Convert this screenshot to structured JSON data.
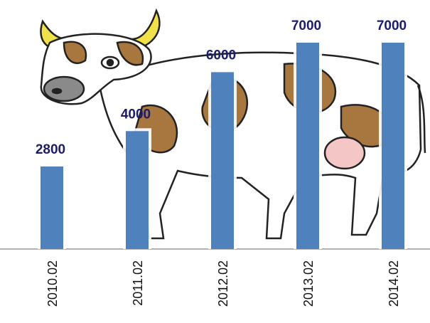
{
  "chart_data": {
    "type": "bar",
    "categories": [
      "2010.02",
      "2011.02",
      "2012.02",
      "2013.02",
      "2014.02"
    ],
    "values": [
      2800,
      4000,
      6000,
      7000,
      7000
    ],
    "color": "#4f81bd"
  }
}
